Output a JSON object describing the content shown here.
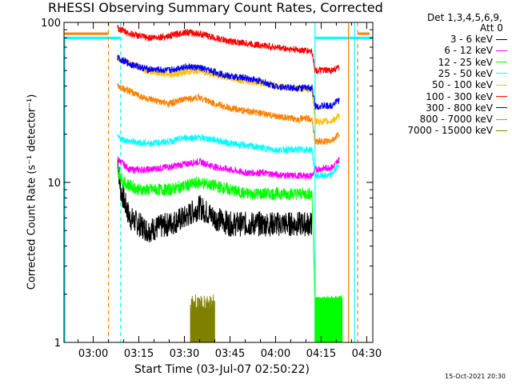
{
  "title": "RHESSI Observing Summary Count Rates, Corrected",
  "legend_header": [
    "Det 1,3,4,5,6,9,",
    "Att 0"
  ],
  "footer": "15-Oct-2021 20:30",
  "chart_data": {
    "type": "line",
    "title": "RHESSI Observing Summary Count Rates, Corrected",
    "xlabel": "Start Time (03-Jul-07 02:50:22)",
    "ylabel": "Corrected Count Rate (s⁻¹ detector⁻¹)",
    "xlim": [
      "02:50:22",
      "04:32"
    ],
    "x_ticks": [
      "03:00",
      "03:15",
      "03:30",
      "03:45",
      "04:00",
      "04:15",
      "04:30"
    ],
    "y_scale": "log",
    "ylim": [
      1,
      100
    ],
    "y_ticks": [
      "1",
      "10",
      "100"
    ],
    "legend_position": "top-right outside",
    "series": [
      {
        "name": "3 - 6 keV",
        "color": "#000000",
        "points": [
          [
            "03:08",
            14
          ],
          [
            "03:09",
            9
          ],
          [
            "03:12",
            6
          ],
          [
            "03:18",
            5
          ],
          [
            "03:25",
            5.5
          ],
          [
            "03:30",
            6
          ],
          [
            "03:35",
            7
          ],
          [
            "03:40",
            6
          ],
          [
            "03:45",
            5.5
          ],
          [
            "03:50",
            5.5
          ],
          [
            "03:55",
            5.5
          ],
          [
            "04:00",
            5.5
          ],
          [
            "04:04",
            5.5
          ],
          [
            "04:12",
            5.5
          ]
        ]
      },
      {
        "name": "6 - 12 keV",
        "color": "#ff00ff",
        "points": [
          [
            "03:08",
            14
          ],
          [
            "03:12",
            12
          ],
          [
            "03:18",
            12
          ],
          [
            "03:25",
            12.5
          ],
          [
            "03:30",
            13
          ],
          [
            "03:35",
            13.5
          ],
          [
            "03:40",
            12.5
          ],
          [
            "03:45",
            12
          ],
          [
            "03:50",
            11.5
          ],
          [
            "03:55",
            11.5
          ],
          [
            "04:00",
            11.2
          ],
          [
            "04:05",
            11
          ],
          [
            "04:12",
            11
          ],
          [
            "04:13",
            12
          ],
          [
            "04:19",
            12.5
          ],
          [
            "04:21",
            14
          ]
        ]
      },
      {
        "name": "12 - 25 keV",
        "color": "#00ff00",
        "points": [
          [
            "03:08",
            12
          ],
          [
            "03:10",
            10
          ],
          [
            "03:15",
            9
          ],
          [
            "03:20",
            9
          ],
          [
            "03:25",
            9
          ],
          [
            "03:30",
            9.5
          ],
          [
            "03:35",
            10
          ],
          [
            "03:40",
            9.5
          ],
          [
            "03:45",
            9
          ],
          [
            "03:50",
            8.5
          ],
          [
            "03:55",
            8.5
          ],
          [
            "04:00",
            8.5
          ],
          [
            "04:05",
            8.5
          ],
          [
            "04:12",
            8.5
          ],
          [
            "04:13",
            1.8
          ],
          [
            "04:22",
            1.8
          ]
        ]
      },
      {
        "name": "25 - 50 keV",
        "color": "#00ffff",
        "points": [
          [
            "03:08",
            19
          ],
          [
            "03:12",
            18
          ],
          [
            "03:18",
            17.5
          ],
          [
            "03:25",
            18
          ],
          [
            "03:30",
            19
          ],
          [
            "03:35",
            19
          ],
          [
            "03:40",
            18.5
          ],
          [
            "03:45",
            17.5
          ],
          [
            "03:50",
            17
          ],
          [
            "03:55",
            16.5
          ],
          [
            "04:00",
            16
          ],
          [
            "04:05",
            16
          ],
          [
            "04:12",
            16
          ],
          [
            "04:13",
            11
          ],
          [
            "04:18",
            11
          ],
          [
            "04:21",
            13
          ]
        ]
      },
      {
        "name": "50 - 100 keV",
        "color": "#ffc000",
        "points": [
          [
            "03:08",
            60
          ],
          [
            "03:12",
            55
          ],
          [
            "03:18",
            50
          ],
          [
            "03:25",
            47
          ],
          [
            "03:30",
            49
          ],
          [
            "03:35",
            50
          ],
          [
            "03:40",
            47
          ],
          [
            "03:45",
            45
          ],
          [
            "03:50",
            43
          ],
          [
            "03:55",
            42
          ],
          [
            "04:00",
            40
          ],
          [
            "04:05",
            39
          ],
          [
            "04:12",
            38
          ],
          [
            "04:13",
            24
          ],
          [
            "04:18",
            24
          ],
          [
            "04:21",
            26
          ]
        ]
      },
      {
        "name": "100 - 300 keV",
        "color": "#ff0000",
        "points": [
          [
            "03:08",
            92
          ],
          [
            "03:12",
            85
          ],
          [
            "03:18",
            80
          ],
          [
            "03:25",
            82
          ],
          [
            "03:30",
            87
          ],
          [
            "03:35",
            85
          ],
          [
            "03:40",
            80
          ],
          [
            "03:45",
            76
          ],
          [
            "03:50",
            74
          ],
          [
            "03:55",
            72
          ],
          [
            "04:00",
            70
          ],
          [
            "04:05",
            68
          ],
          [
            "04:12",
            66
          ],
          [
            "04:13",
            50
          ],
          [
            "04:18",
            50
          ],
          [
            "04:21",
            52
          ]
        ]
      },
      {
        "name": "300 - 800 keV",
        "color": "#0000ff",
        "points": [
          [
            "03:08",
            60
          ],
          [
            "03:12",
            55
          ],
          [
            "03:18",
            51
          ],
          [
            "03:25",
            50
          ],
          [
            "03:30",
            53
          ],
          [
            "03:35",
            52
          ],
          [
            "03:40",
            49
          ],
          [
            "03:45",
            46
          ],
          [
            "03:50",
            45
          ],
          [
            "03:55",
            43
          ],
          [
            "04:00",
            40
          ],
          [
            "04:05",
            39
          ],
          [
            "04:12",
            39
          ],
          [
            "04:13",
            30
          ],
          [
            "04:18",
            30
          ],
          [
            "04:21",
            33
          ]
        ]
      },
      {
        "name": "800 - 7000 keV",
        "color": "#ff8000",
        "points": [
          [
            "03:08",
            40
          ],
          [
            "03:12",
            37
          ],
          [
            "03:18",
            33
          ],
          [
            "03:25",
            31
          ],
          [
            "03:30",
            33
          ],
          [
            "03:35",
            34
          ],
          [
            "03:40",
            31
          ],
          [
            "03:45",
            29
          ],
          [
            "03:50",
            28
          ],
          [
            "03:55",
            27
          ],
          [
            "04:00",
            26
          ],
          [
            "04:05",
            25
          ],
          [
            "04:12",
            25
          ],
          [
            "04:13",
            18
          ],
          [
            "04:18",
            18
          ],
          [
            "04:21",
            20
          ]
        ]
      },
      {
        "name": "7000 - 15000 keV",
        "color": "#808000",
        "points": [
          [
            "03:32",
            1.9
          ],
          [
            "03:35",
            1.9
          ],
          [
            "03:37",
            1.8
          ],
          [
            "03:40",
            1.8
          ]
        ]
      }
    ],
    "flag_lines": [
      {
        "name": "attenuator/state bars",
        "color": "#00ffff",
        "value": 80
      },
      {
        "name": "decimation bars",
        "color": "#ff8000",
        "value": 85
      }
    ],
    "vertical_markers": [
      {
        "color": "#ff8000",
        "style": "dashed",
        "time": "03:05"
      },
      {
        "color": "#00ffff",
        "style": "dashed",
        "time": "03:09"
      },
      {
        "color": "#00ffff",
        "style": "solid",
        "time": "04:13"
      },
      {
        "color": "#ff8000",
        "style": "solid",
        "time": "04:24"
      },
      {
        "color": "#00ffff",
        "style": "solid",
        "time": "04:26"
      },
      {
        "color": "#ff8000",
        "style": "dashed",
        "time": "04:27"
      }
    ]
  }
}
